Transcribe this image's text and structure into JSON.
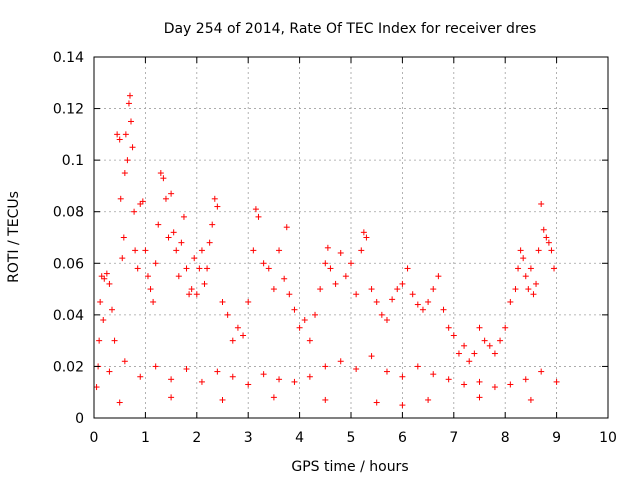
{
  "chart_data": {
    "type": "scatter",
    "title": "Day 254 of 2014, Rate Of TEC Index for receiver dres",
    "xlabel": "GPS time / hours",
    "ylabel": "ROTI / TECUs",
    "xlim": [
      0,
      10
    ],
    "ylim": [
      0,
      0.14
    ],
    "xticks": [
      0,
      1,
      2,
      3,
      4,
      5,
      6,
      7,
      8,
      9,
      10
    ],
    "yticks": [
      0,
      0.02,
      0.04,
      0.06,
      0.08,
      0.1,
      0.12,
      0.14
    ],
    "xtick_labels": [
      "0",
      "1",
      "2",
      "3",
      "4",
      "5",
      "6",
      "7",
      "8",
      "9",
      "10"
    ],
    "ytick_labels": [
      "0",
      "0.02",
      "0.04",
      "0.06",
      "0.08",
      "0.1",
      "0.12",
      "0.14"
    ],
    "grid": true,
    "marker": "+",
    "color": "#ff0000",
    "series": [
      {
        "name": "ROTI",
        "points": [
          [
            0.05,
            0.012
          ],
          [
            0.08,
            0.02
          ],
          [
            0.1,
            0.03
          ],
          [
            0.12,
            0.045
          ],
          [
            0.15,
            0.055
          ],
          [
            0.18,
            0.038
          ],
          [
            0.2,
            0.054
          ],
          [
            0.25,
            0.056
          ],
          [
            0.3,
            0.052
          ],
          [
            0.35,
            0.042
          ],
          [
            0.4,
            0.03
          ],
          [
            0.45,
            0.11
          ],
          [
            0.5,
            0.108
          ],
          [
            0.52,
            0.085
          ],
          [
            0.55,
            0.062
          ],
          [
            0.58,
            0.07
          ],
          [
            0.6,
            0.095
          ],
          [
            0.62,
            0.11
          ],
          [
            0.65,
            0.1
          ],
          [
            0.68,
            0.122
          ],
          [
            0.7,
            0.125
          ],
          [
            0.72,
            0.115
          ],
          [
            0.75,
            0.105
          ],
          [
            0.78,
            0.08
          ],
          [
            0.8,
            0.065
          ],
          [
            0.85,
            0.058
          ],
          [
            0.9,
            0.083
          ],
          [
            0.95,
            0.084
          ],
          [
            1.0,
            0.065
          ],
          [
            1.05,
            0.055
          ],
          [
            1.1,
            0.05
          ],
          [
            1.15,
            0.045
          ],
          [
            1.2,
            0.06
          ],
          [
            1.25,
            0.075
          ],
          [
            1.3,
            0.095
          ],
          [
            1.35,
            0.093
          ],
          [
            1.4,
            0.085
          ],
          [
            1.45,
            0.07
          ],
          [
            1.5,
            0.087
          ],
          [
            1.55,
            0.072
          ],
          [
            1.6,
            0.065
          ],
          [
            1.65,
            0.055
          ],
          [
            1.7,
            0.068
          ],
          [
            1.75,
            0.078
          ],
          [
            1.8,
            0.058
          ],
          [
            1.85,
            0.048
          ],
          [
            1.9,
            0.05
          ],
          [
            1.95,
            0.062
          ],
          [
            2.0,
            0.048
          ],
          [
            2.05,
            0.058
          ],
          [
            2.1,
            0.065
          ],
          [
            2.15,
            0.052
          ],
          [
            2.2,
            0.058
          ],
          [
            2.25,
            0.068
          ],
          [
            2.3,
            0.075
          ],
          [
            2.35,
            0.085
          ],
          [
            2.4,
            0.082
          ],
          [
            2.5,
            0.045
          ],
          [
            2.6,
            0.04
          ],
          [
            2.7,
            0.03
          ],
          [
            2.8,
            0.035
          ],
          [
            2.9,
            0.032
          ],
          [
            3.0,
            0.045
          ],
          [
            3.1,
            0.065
          ],
          [
            3.15,
            0.081
          ],
          [
            3.2,
            0.078
          ],
          [
            3.3,
            0.06
          ],
          [
            3.4,
            0.058
          ],
          [
            3.5,
            0.05
          ],
          [
            3.6,
            0.065
          ],
          [
            3.7,
            0.054
          ],
          [
            3.75,
            0.074
          ],
          [
            3.8,
            0.048
          ],
          [
            3.9,
            0.042
          ],
          [
            4.0,
            0.035
          ],
          [
            4.1,
            0.038
          ],
          [
            4.2,
            0.03
          ],
          [
            4.3,
            0.04
          ],
          [
            4.4,
            0.05
          ],
          [
            4.5,
            0.06
          ],
          [
            4.55,
            0.066
          ],
          [
            4.6,
            0.058
          ],
          [
            4.7,
            0.052
          ],
          [
            4.8,
            0.064
          ],
          [
            4.9,
            0.055
          ],
          [
            5.0,
            0.06
          ],
          [
            5.1,
            0.048
          ],
          [
            5.2,
            0.065
          ],
          [
            5.25,
            0.072
          ],
          [
            5.3,
            0.07
          ],
          [
            5.4,
            0.05
          ],
          [
            5.5,
            0.045
          ],
          [
            5.6,
            0.04
          ],
          [
            5.7,
            0.038
          ],
          [
            5.8,
            0.046
          ],
          [
            5.9,
            0.05
          ],
          [
            6.0,
            0.052
          ],
          [
            6.1,
            0.058
          ],
          [
            6.2,
            0.048
          ],
          [
            6.3,
            0.044
          ],
          [
            6.4,
            0.042
          ],
          [
            6.5,
            0.045
          ],
          [
            6.6,
            0.05
          ],
          [
            6.7,
            0.055
          ],
          [
            6.8,
            0.042
          ],
          [
            6.9,
            0.035
          ],
          [
            7.0,
            0.032
          ],
          [
            7.1,
            0.025
          ],
          [
            7.2,
            0.028
          ],
          [
            7.3,
            0.022
          ],
          [
            7.4,
            0.025
          ],
          [
            7.5,
            0.035
          ],
          [
            7.6,
            0.03
          ],
          [
            7.7,
            0.028
          ],
          [
            7.8,
            0.025
          ],
          [
            7.9,
            0.03
          ],
          [
            8.0,
            0.035
          ],
          [
            8.1,
            0.045
          ],
          [
            8.2,
            0.05
          ],
          [
            8.25,
            0.058
          ],
          [
            8.3,
            0.065
          ],
          [
            8.35,
            0.062
          ],
          [
            8.4,
            0.055
          ],
          [
            8.45,
            0.05
          ],
          [
            8.5,
            0.058
          ],
          [
            8.55,
            0.048
          ],
          [
            8.6,
            0.052
          ],
          [
            8.65,
            0.065
          ],
          [
            8.7,
            0.083
          ],
          [
            8.75,
            0.073
          ],
          [
            8.8,
            0.07
          ],
          [
            8.85,
            0.068
          ],
          [
            8.9,
            0.065
          ],
          [
            8.95,
            0.058
          ],
          [
            0.3,
            0.018
          ],
          [
            0.6,
            0.022
          ],
          [
            0.9,
            0.016
          ],
          [
            1.2,
            0.02
          ],
          [
            1.5,
            0.015
          ],
          [
            1.8,
            0.019
          ],
          [
            2.1,
            0.014
          ],
          [
            2.4,
            0.018
          ],
          [
            2.7,
            0.016
          ],
          [
            3.0,
            0.013
          ],
          [
            3.3,
            0.017
          ],
          [
            3.6,
            0.015
          ],
          [
            3.9,
            0.014
          ],
          [
            4.2,
            0.016
          ],
          [
            4.5,
            0.02
          ],
          [
            4.8,
            0.022
          ],
          [
            5.1,
            0.019
          ],
          [
            5.4,
            0.024
          ],
          [
            5.7,
            0.018
          ],
          [
            6.0,
            0.016
          ],
          [
            6.3,
            0.02
          ],
          [
            6.6,
            0.017
          ],
          [
            6.9,
            0.015
          ],
          [
            7.2,
            0.013
          ],
          [
            7.5,
            0.014
          ],
          [
            7.8,
            0.012
          ],
          [
            8.1,
            0.013
          ],
          [
            8.4,
            0.015
          ],
          [
            8.7,
            0.018
          ],
          [
            9.0,
            0.014
          ],
          [
            0.5,
            0.006
          ],
          [
            1.5,
            0.008
          ],
          [
            2.5,
            0.007
          ],
          [
            3.5,
            0.008
          ],
          [
            4.5,
            0.007
          ],
          [
            5.5,
            0.006
          ],
          [
            6.0,
            0.005
          ],
          [
            6.5,
            0.007
          ],
          [
            7.5,
            0.008
          ],
          [
            8.5,
            0.007
          ]
        ]
      }
    ]
  }
}
